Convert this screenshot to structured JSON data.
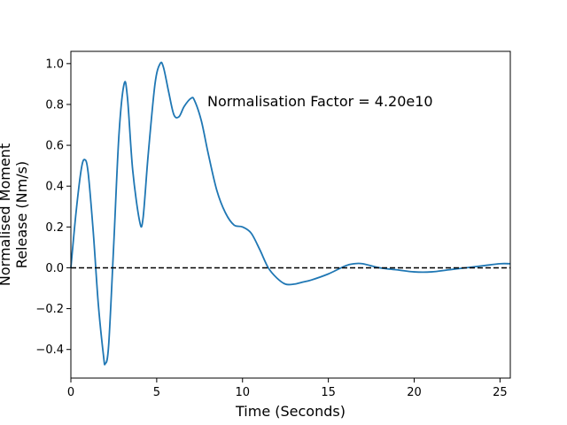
{
  "chart_data": {
    "type": "line",
    "xlabel": "Time (Seconds)",
    "ylabel_lines": [
      "Normalised Moment",
      "Release (Nm/s)"
    ],
    "annotation": "Normalisation Factor = 4.20e10",
    "xlim": [
      0,
      25.6
    ],
    "ylim": [
      -0.54,
      1.06
    ],
    "xticks": [
      0,
      5,
      10,
      15,
      20,
      25
    ],
    "yticks": [
      -0.4,
      -0.2,
      0.0,
      0.2,
      0.4,
      0.6,
      0.8,
      1.0
    ],
    "ytick_labels": [
      "−0.4",
      "−0.2",
      "0.0",
      "0.2",
      "0.4",
      "0.6",
      "0.8",
      "1.0"
    ],
    "grid": false,
    "reference_line": {
      "y": 0,
      "style": "dashed",
      "color": "#000000"
    },
    "series": [
      {
        "color": "#1f77b4",
        "x": [
          0,
          0.3,
          0.6,
          0.8,
          1.0,
          1.3,
          1.6,
          1.9,
          2.0,
          2.2,
          2.5,
          2.8,
          3.1,
          3.3,
          3.6,
          4.0,
          4.2,
          4.5,
          4.9,
          5.2,
          5.4,
          5.7,
          6.0,
          6.3,
          6.6,
          7.0,
          7.2,
          7.6,
          8.0,
          8.5,
          9.0,
          9.5,
          10.0,
          10.5,
          11.0,
          11.5,
          12.0,
          12.5,
          13.0,
          13.5,
          14.0,
          15.0,
          16.0,
          16.5,
          17.0,
          18.0,
          19.0,
          20.0,
          21.0,
          22.0,
          23.0,
          24.0,
          25.0,
          25.6
        ],
        "y": [
          0.0,
          0.27,
          0.48,
          0.53,
          0.47,
          0.18,
          -0.18,
          -0.43,
          -0.47,
          -0.38,
          0.12,
          0.65,
          0.9,
          0.83,
          0.48,
          0.23,
          0.24,
          0.55,
          0.9,
          1.0,
          0.98,
          0.86,
          0.75,
          0.74,
          0.79,
          0.83,
          0.82,
          0.72,
          0.56,
          0.38,
          0.27,
          0.21,
          0.2,
          0.17,
          0.09,
          0.0,
          -0.05,
          -0.08,
          -0.08,
          -0.07,
          -0.06,
          -0.03,
          0.01,
          0.02,
          0.02,
          0.0,
          -0.01,
          -0.02,
          -0.02,
          -0.01,
          0.0,
          0.01,
          0.02,
          0.02
        ]
      }
    ]
  }
}
